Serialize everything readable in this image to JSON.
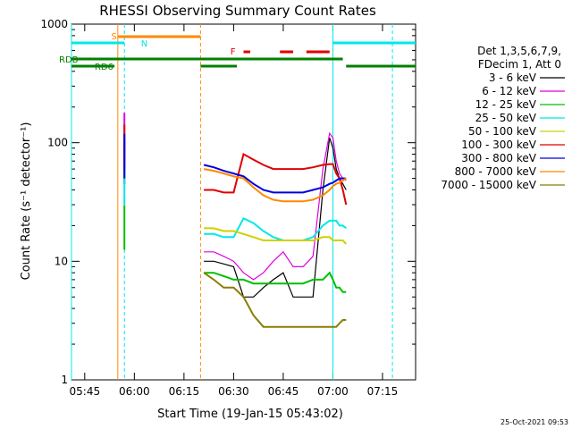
{
  "chart_data": {
    "type": "line",
    "title": "RHESSI Observing Summary Count Rates",
    "xlabel": "Start Time (19-Jan-15 05:43:02)",
    "ylabel": "Count Rate (s⁻¹ detector⁻¹)",
    "y_scale": "log",
    "ylim": [
      1,
      1000
    ],
    "xlim": [
      "05:41",
      "07:25"
    ],
    "x_ticks": [
      "05:45",
      "06:00",
      "06:15",
      "06:30",
      "06:45",
      "07:00",
      "07:15"
    ],
    "y_ticks": [
      "1",
      "10",
      "100",
      "1000"
    ],
    "legend_header": [
      "Det 1,3,5,6,7,9,",
      "FDecim 1, Att 0"
    ],
    "legend_position": "right",
    "footer_date": "25-Oct-2021 09:53",
    "x": [
      "05:41",
      "05:55",
      "05:56",
      "05:57",
      "05:58",
      "06:04",
      "06:06",
      "06:20",
      "06:21",
      "06:24",
      "06:27",
      "06:30",
      "06:33",
      "06:36",
      "06:39",
      "06:42",
      "06:45",
      "06:48",
      "06:51",
      "06:54",
      "06:57",
      "06:59",
      "07:00",
      "07:01",
      "07:02",
      "07:03",
      "07:04",
      "07:05",
      "07:25"
    ],
    "series": [
      {
        "name": "3 - 6 keV",
        "color": "#000000",
        "values": [
          null,
          null,
          null,
          90,
          null,
          null,
          null,
          null,
          10,
          10,
          9.5,
          9,
          5,
          5,
          6,
          7,
          8,
          5,
          5,
          5,
          40,
          110,
          90,
          60,
          50,
          45,
          40,
          null,
          null
        ]
      },
      {
        "name": "6 - 12 keV",
        "color": "#e000e0",
        "values": [
          null,
          null,
          null,
          150,
          null,
          null,
          null,
          null,
          12,
          12,
          11,
          10,
          8,
          7,
          8,
          10,
          12,
          9,
          9,
          11,
          60,
          120,
          110,
          70,
          55,
          50,
          48,
          null,
          null
        ]
      },
      {
        "name": "12 - 25 keV",
        "color": "#00c000",
        "values": [
          null,
          null,
          null,
          25,
          null,
          null,
          null,
          null,
          8,
          8,
          7.5,
          7,
          7,
          6.5,
          6.5,
          6.5,
          6.5,
          6.5,
          6.5,
          7,
          7,
          8,
          7,
          6,
          6,
          5.5,
          5.5,
          null,
          null
        ]
      },
      {
        "name": "25 - 50 keV",
        "color": "#00e8e8",
        "values": [
          null,
          null,
          null,
          60,
          null,
          null,
          null,
          null,
          17,
          17,
          16,
          16,
          23,
          21,
          18,
          16,
          15,
          15,
          15,
          16,
          20,
          22,
          22,
          22,
          20,
          20,
          19,
          null,
          null
        ]
      },
      {
        "name": "50 - 100 keV",
        "color": "#d0d000",
        "values": [
          null,
          null,
          null,
          null,
          null,
          null,
          null,
          null,
          19,
          19,
          18,
          18,
          17,
          16,
          15,
          15,
          15,
          15,
          15,
          15,
          16,
          16,
          15,
          15,
          15,
          15,
          14,
          null,
          null
        ]
      },
      {
        "name": "100 - 300 keV",
        "color": "#e00000",
        "values": [
          null,
          null,
          null,
          120,
          null,
          null,
          null,
          null,
          40,
          40,
          38,
          38,
          80,
          72,
          65,
          60,
          60,
          60,
          60,
          62,
          65,
          66,
          66,
          55,
          50,
          40,
          30,
          null,
          null
        ]
      },
      {
        "name": "300 - 800 keV",
        "color": "#0000e0",
        "values": [
          null,
          null,
          null,
          100,
          null,
          null,
          null,
          null,
          65,
          62,
          58,
          55,
          52,
          45,
          40,
          38,
          38,
          38,
          38,
          40,
          42,
          45,
          46,
          48,
          50,
          50,
          50,
          null,
          null
        ]
      },
      {
        "name": "800 - 7000 keV",
        "color": "#ff8800",
        "values": [
          null,
          null,
          null,
          null,
          null,
          null,
          null,
          null,
          60,
          58,
          55,
          52,
          50,
          42,
          36,
          33,
          32,
          32,
          32,
          33,
          36,
          40,
          43,
          45,
          46,
          48,
          50,
          null,
          null
        ]
      },
      {
        "name": "7000 - 15000 keV",
        "color": "#8b7d00",
        "values": [
          null,
          null,
          null,
          null,
          null,
          null,
          null,
          null,
          8,
          7,
          6,
          6,
          5,
          3.5,
          2.8,
          2.8,
          2.8,
          2.8,
          2.8,
          2.8,
          2.8,
          2.8,
          2.8,
          2.8,
          3,
          3.2,
          3.2,
          null,
          null
        ]
      }
    ],
    "state_flags": [
      {
        "label": "S",
        "color": "#ff8800",
        "start": "05:55",
        "end": "06:20"
      },
      {
        "label": "N",
        "color": "#00e8e8",
        "start": "05:41",
        "end": "05:57",
        "note": "then 07:00 - 07:25"
      },
      {
        "label": "F",
        "color": "#e00000",
        "start": "06:31",
        "end": "06:59"
      },
      {
        "label": "RDB",
        "color": "#008000",
        "start": "05:41",
        "end": "07:03"
      },
      {
        "label": "RD6",
        "color": "#008000",
        "start": "05:41",
        "end": "05:54"
      }
    ]
  }
}
